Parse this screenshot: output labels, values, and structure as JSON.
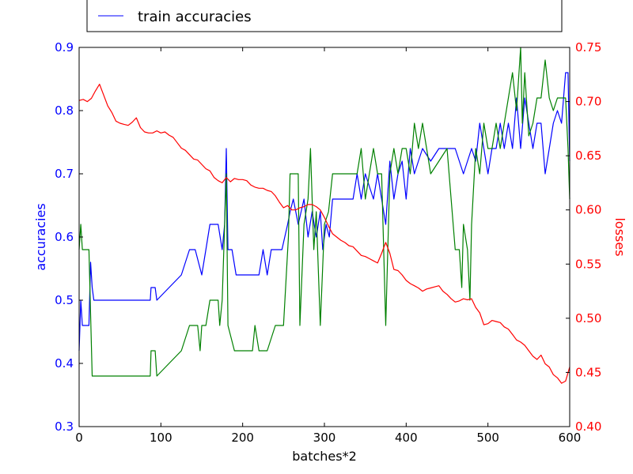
{
  "chart_data": {
    "type": "line",
    "xlabel": "batches*2",
    "ylabel_left": "accuracies",
    "ylabel_right": "losses",
    "xlim": [
      0,
      600
    ],
    "ylim_left": [
      0.3,
      0.9
    ],
    "ylim_right": [
      0.4,
      0.75
    ],
    "x_ticks": [
      "0",
      "100",
      "200",
      "300",
      "400",
      "500",
      "600"
    ],
    "y_left_ticks": [
      "0.3",
      "0.4",
      "0.5",
      "0.6",
      "0.7",
      "0.8",
      "0.9"
    ],
    "y_right_ticks": [
      "0.40",
      "0.45",
      "0.50",
      "0.55",
      "0.60",
      "0.65",
      "0.70",
      "0.75"
    ],
    "grid": false,
    "legend": {
      "placement": "top",
      "entries": [
        "train accuracies"
      ]
    },
    "colors": {
      "left_axis": "#0000ff",
      "right_axis": "#ff0000"
    },
    "series": [
      {
        "name": "train accuracies",
        "axis": "left",
        "color": "#0000ff",
        "x": [
          0,
          2,
          4,
          12,
          14,
          16,
          18,
          30,
          60,
          87,
          88,
          93,
          95,
          125,
          135,
          142,
          150,
          155,
          160,
          165,
          170,
          175,
          178,
          180,
          182,
          187,
          192,
          210,
          220,
          225,
          230,
          235,
          240,
          248,
          255,
          258,
          262,
          268,
          275,
          280,
          285,
          290,
          295,
          298,
          302,
          306,
          310,
          315,
          320,
          330,
          335,
          340,
          345,
          350,
          355,
          360,
          365,
          370,
          375,
          380,
          385,
          390,
          395,
          400,
          405,
          410,
          415,
          420,
          430,
          440,
          450,
          460,
          470,
          480,
          485,
          490,
          495,
          500,
          505,
          510,
          515,
          520,
          525,
          530,
          535,
          540,
          545,
          550,
          555,
          560,
          565,
          570,
          575,
          580,
          585,
          590,
          595,
          598,
          600
        ],
        "y": [
          0.42,
          0.5,
          0.46,
          0.46,
          0.56,
          0.52,
          0.5,
          0.5,
          0.5,
          0.5,
          0.52,
          0.52,
          0.5,
          0.54,
          0.58,
          0.58,
          0.54,
          0.58,
          0.62,
          0.62,
          0.62,
          0.58,
          0.62,
          0.74,
          0.58,
          0.58,
          0.54,
          0.54,
          0.54,
          0.58,
          0.54,
          0.58,
          0.58,
          0.58,
          0.62,
          0.64,
          0.66,
          0.62,
          0.66,
          0.6,
          0.64,
          0.6,
          0.64,
          0.58,
          0.62,
          0.6,
          0.66,
          0.66,
          0.66,
          0.66,
          0.66,
          0.7,
          0.66,
          0.7,
          0.68,
          0.66,
          0.7,
          0.66,
          0.62,
          0.72,
          0.66,
          0.7,
          0.72,
          0.66,
          0.74,
          0.7,
          0.72,
          0.74,
          0.72,
          0.74,
          0.74,
          0.74,
          0.7,
          0.74,
          0.72,
          0.78,
          0.74,
          0.7,
          0.74,
          0.74,
          0.78,
          0.74,
          0.78,
          0.74,
          0.82,
          0.74,
          0.82,
          0.78,
          0.74,
          0.78,
          0.78,
          0.7,
          0.74,
          0.78,
          0.8,
          0.78,
          0.86,
          0.86,
          0.72
        ]
      },
      {
        "axis": "left",
        "color": "#008000",
        "x": [
          0,
          2,
          4,
          12,
          16,
          18,
          30,
          87,
          88,
          93,
          95,
          125,
          135,
          145,
          148,
          150,
          153,
          155,
          160,
          170,
          172,
          175,
          180,
          182,
          190,
          212,
          215,
          220,
          230,
          240,
          250,
          256,
          258,
          262,
          268,
          270,
          275,
          280,
          283,
          287,
          290,
          295,
          300,
          305,
          310,
          315,
          320,
          340,
          345,
          350,
          355,
          360,
          365,
          370,
          375,
          380,
          385,
          390,
          395,
          400,
          405,
          410,
          415,
          420,
          425,
          430,
          440,
          450,
          460,
          465,
          468,
          470,
          475,
          478,
          480,
          485,
          490,
          495,
          500,
          505,
          510,
          515,
          520,
          525,
          530,
          535,
          540,
          542,
          545,
          550,
          555,
          560,
          565,
          570,
          575,
          580,
          585,
          590,
          595,
          598,
          600
        ],
        "y": [
          0.58,
          0.62,
          0.58,
          0.58,
          0.38,
          0.38,
          0.38,
          0.38,
          0.42,
          0.42,
          0.38,
          0.42,
          0.46,
          0.46,
          0.42,
          0.46,
          0.46,
          0.46,
          0.5,
          0.5,
          0.46,
          0.5,
          0.7,
          0.46,
          0.42,
          0.42,
          0.46,
          0.42,
          0.42,
          0.46,
          0.46,
          0.6,
          0.7,
          0.7,
          0.7,
          0.46,
          0.62,
          0.66,
          0.74,
          0.58,
          0.64,
          0.46,
          0.62,
          0.64,
          0.7,
          0.7,
          0.7,
          0.7,
          0.74,
          0.66,
          0.7,
          0.74,
          0.7,
          0.7,
          0.46,
          0.7,
          0.74,
          0.7,
          0.74,
          0.74,
          0.7,
          0.78,
          0.74,
          0.78,
          0.74,
          0.7,
          0.72,
          0.74,
          0.58,
          0.58,
          0.52,
          0.62,
          0.58,
          0.5,
          0.62,
          0.74,
          0.7,
          0.78,
          0.74,
          0.74,
          0.78,
          0.74,
          0.78,
          0.82,
          0.86,
          0.8,
          0.9,
          0.78,
          0.86,
          0.76,
          0.78,
          0.82,
          0.82,
          0.88,
          0.82,
          0.8,
          0.82,
          0.82,
          0.82,
          0.74,
          0.66
        ]
      },
      {
        "axis": "right",
        "color": "#ff0000",
        "x": [
          0,
          5,
          10,
          15,
          20,
          25,
          30,
          35,
          40,
          45,
          50,
          55,
          60,
          65,
          70,
          75,
          80,
          85,
          90,
          95,
          100,
          105,
          110,
          115,
          120,
          125,
          130,
          135,
          140,
          145,
          150,
          155,
          160,
          165,
          170,
          175,
          180,
          185,
          190,
          195,
          200,
          205,
          210,
          215,
          220,
          225,
          230,
          235,
          240,
          245,
          250,
          255,
          260,
          265,
          270,
          275,
          280,
          285,
          290,
          295,
          300,
          305,
          310,
          315,
          320,
          325,
          330,
          335,
          340,
          345,
          350,
          355,
          360,
          365,
          370,
          375,
          380,
          385,
          390,
          395,
          400,
          405,
          410,
          415,
          420,
          425,
          430,
          435,
          440,
          445,
          450,
          455,
          460,
          465,
          470,
          475,
          480,
          485,
          490,
          495,
          500,
          505,
          510,
          515,
          520,
          525,
          530,
          535,
          540,
          545,
          550,
          555,
          560,
          565,
          570,
          575,
          580,
          585,
          590,
          595,
          600
        ],
        "y": [
          0.701,
          0.702,
          0.7,
          0.703,
          0.71,
          0.716,
          0.706,
          0.696,
          0.69,
          0.682,
          0.68,
          0.679,
          0.678,
          0.681,
          0.685,
          0.676,
          0.672,
          0.671,
          0.671,
          0.673,
          0.671,
          0.672,
          0.669,
          0.667,
          0.662,
          0.657,
          0.655,
          0.651,
          0.647,
          0.646,
          0.642,
          0.638,
          0.636,
          0.63,
          0.627,
          0.625,
          0.63,
          0.626,
          0.629,
          0.628,
          0.628,
          0.627,
          0.623,
          0.621,
          0.62,
          0.62,
          0.618,
          0.617,
          0.613,
          0.607,
          0.602,
          0.604,
          0.6,
          0.6,
          0.602,
          0.603,
          0.605,
          0.605,
          0.603,
          0.6,
          0.593,
          0.585,
          0.578,
          0.575,
          0.572,
          0.57,
          0.567,
          0.566,
          0.562,
          0.558,
          0.557,
          0.555,
          0.553,
          0.551,
          0.56,
          0.57,
          0.56,
          0.545,
          0.544,
          0.54,
          0.535,
          0.532,
          0.53,
          0.528,
          0.525,
          0.527,
          0.528,
          0.529,
          0.53,
          0.525,
          0.522,
          0.518,
          0.515,
          0.516,
          0.518,
          0.517,
          0.518,
          0.51,
          0.505,
          0.494,
          0.495,
          0.498,
          0.497,
          0.496,
          0.492,
          0.49,
          0.485,
          0.48,
          0.478,
          0.475,
          0.47,
          0.465,
          0.462,
          0.466,
          0.458,
          0.455,
          0.448,
          0.445,
          0.44,
          0.442,
          0.455
        ]
      }
    ]
  }
}
